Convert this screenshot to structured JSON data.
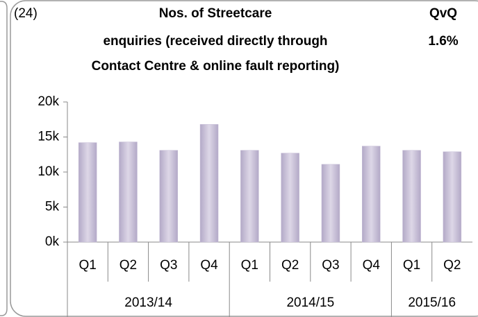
{
  "chart_data": {
    "type": "bar",
    "label": "(24)",
    "title": [
      "Nos. of Streetcare",
      "enquiries (received directly through",
      "Contact Centre & online fault reporting)"
    ],
    "annotation": [
      "QvQ",
      "1.6%"
    ],
    "categories": [
      "Q1",
      "Q2",
      "Q3",
      "Q4",
      "Q1",
      "Q2",
      "Q3",
      "Q4",
      "Q1",
      "Q2"
    ],
    "category_groups": [
      "2013/14",
      "2013/14",
      "2013/14",
      "2013/14",
      "2014/15",
      "2014/15",
      "2014/15",
      "2014/15",
      "2015/16",
      "2015/16"
    ],
    "values": [
      14200,
      14300,
      13100,
      16800,
      13100,
      12700,
      11100,
      13700,
      13100,
      12900
    ],
    "color": "#c5bdd6",
    "ylim": [
      0,
      20000
    ],
    "yticks": [
      {
        "value": 0,
        "label": "0k"
      },
      {
        "value": 5000,
        "label": "5k"
      },
      {
        "value": 10000,
        "label": "10k"
      },
      {
        "value": 15000,
        "label": "15k"
      },
      {
        "value": 20000,
        "label": "20k"
      }
    ]
  }
}
